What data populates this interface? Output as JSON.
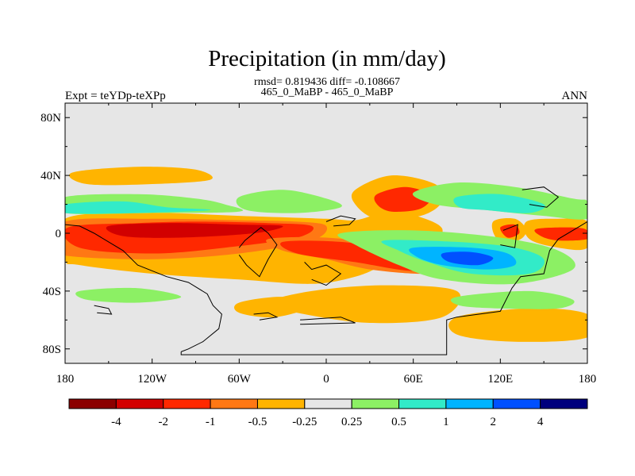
{
  "chart_data": {
    "type": "heatmap",
    "title": "Precipitation (in mm/day)",
    "stats": "rmsd= 0.819436 diff= -0.108667",
    "case_label": "465_0_MaBP - 465_0_MaBP",
    "left_label": "Expt = teYDp-teXPp",
    "right_label": "ANN",
    "x_ticks": [
      "180",
      "120W",
      "60W",
      "0",
      "60E",
      "120E",
      "180"
    ],
    "x_values": [
      -180,
      -120,
      -60,
      0,
      60,
      120,
      180
    ],
    "y_ticks": [
      "80N",
      "40N",
      "0",
      "40S",
      "80S"
    ],
    "y_values": [
      80,
      40,
      0,
      -40,
      -80
    ],
    "xlim": [
      -180,
      180
    ],
    "ylim": [
      -90,
      90
    ],
    "colorbar": {
      "labels": [
        "-4",
        "-2",
        "-1",
        "-0.5",
        "-0.25",
        "0.25",
        "0.5",
        "1",
        "2",
        "4"
      ],
      "colors": [
        "#8b0000",
        "#d20000",
        "#ff2800",
        "#ff7814",
        "#ffb400",
        "#e6e6e6",
        "#8cf064",
        "#32ebc8",
        "#00b4ff",
        "#0050ff",
        "#00007d"
      ]
    },
    "background_color": "#e6e6e6",
    "features": [
      {
        "level": "-0.25",
        "color": "#ffb400",
        "pts": [
          [
            -180,
            10
          ],
          [
            -120,
            14
          ],
          [
            -60,
            12
          ],
          [
            0,
            10
          ],
          [
            20,
            9
          ],
          [
            40,
            14
          ],
          [
            62,
            12
          ],
          [
            80,
            3
          ],
          [
            70,
            -10
          ],
          [
            40,
            -22
          ],
          [
            20,
            -30
          ],
          [
            -10,
            -35
          ],
          [
            -60,
            -32
          ],
          [
            -120,
            -28
          ],
          [
            -170,
            -22
          ],
          [
            -180,
            -18
          ]
        ]
      },
      {
        "level": "-0.5",
        "color": "#ff7814",
        "pts": [
          [
            -180,
            8
          ],
          [
            -120,
            10
          ],
          [
            -60,
            9
          ],
          [
            -20,
            8
          ],
          [
            0,
            5
          ],
          [
            -10,
            -5
          ],
          [
            -60,
            -14
          ],
          [
            -120,
            -18
          ],
          [
            -175,
            -16
          ],
          [
            -180,
            -12
          ]
        ]
      },
      {
        "level": "-1",
        "color": "#ff2800",
        "pts": [
          [
            -178,
            4
          ],
          [
            -130,
            7
          ],
          [
            -90,
            8
          ],
          [
            -40,
            7
          ],
          [
            -10,
            5
          ],
          [
            -20,
            -3
          ],
          [
            -70,
            -10
          ],
          [
            -120,
            -14
          ],
          [
            -170,
            -10
          ]
        ]
      },
      {
        "level": "-2",
        "color": "#d20000",
        "pts": [
          [
            -150,
            5
          ],
          [
            -110,
            7
          ],
          [
            -60,
            6
          ],
          [
            -30,
            5
          ],
          [
            -50,
            0
          ],
          [
            -100,
            -3
          ],
          [
            -140,
            -2
          ]
        ]
      },
      {
        "level": "-0.5",
        "color": "#ff7814",
        "pts": [
          [
            -40,
            -4
          ],
          [
            0,
            -3
          ],
          [
            40,
            -8
          ],
          [
            80,
            -15
          ],
          [
            90,
            -22
          ],
          [
            70,
            -28
          ],
          [
            30,
            -25
          ],
          [
            0,
            -18
          ],
          [
            -30,
            -12
          ]
        ]
      },
      {
        "level": "-1",
        "color": "#ff2800",
        "pts": [
          [
            -30,
            -6
          ],
          [
            10,
            -6
          ],
          [
            50,
            -12
          ],
          [
            80,
            -20
          ],
          [
            60,
            -26
          ],
          [
            20,
            -20
          ],
          [
            -20,
            -14
          ]
        ]
      },
      {
        "level": "-0.25",
        "color": "#ffb400",
        "pts": [
          [
            20,
            30
          ],
          [
            45,
            40
          ],
          [
            75,
            34
          ],
          [
            80,
            22
          ],
          [
            65,
            12
          ],
          [
            35,
            10
          ],
          [
            20,
            20
          ]
        ]
      },
      {
        "level": "-1",
        "color": "#ff2800",
        "pts": [
          [
            35,
            27
          ],
          [
            55,
            32
          ],
          [
            72,
            26
          ],
          [
            65,
            17
          ],
          [
            45,
            15
          ],
          [
            35,
            20
          ]
        ]
      },
      {
        "level": "-0.25",
        "color": "#ffb400",
        "pts": [
          [
            -175,
            42
          ],
          [
            -130,
            46
          ],
          [
            -90,
            44
          ],
          [
            -80,
            37
          ],
          [
            -120,
            34
          ],
          [
            -165,
            34
          ]
        ]
      },
      {
        "level": "-0.25",
        "color": "#ffb400",
        "pts": [
          [
            115,
            8
          ],
          [
            130,
            10
          ],
          [
            138,
            2
          ],
          [
            132,
            -5
          ],
          [
            118,
            -4
          ]
        ]
      },
      {
        "level": "-1",
        "color": "#ff2800",
        "pts": [
          [
            120,
            4
          ],
          [
            130,
            6
          ],
          [
            133,
            0
          ],
          [
            125,
            -3
          ]
        ]
      },
      {
        "level": "-0.25",
        "color": "#ffb400",
        "pts": [
          [
            138,
            8
          ],
          [
            160,
            10
          ],
          [
            180,
            8
          ],
          [
            180,
            -10
          ],
          [
            160,
            -10
          ],
          [
            140,
            -4
          ]
        ]
      },
      {
        "level": "-1",
        "color": "#ff2800",
        "pts": [
          [
            145,
            3
          ],
          [
            170,
            4
          ],
          [
            180,
            2
          ],
          [
            180,
            -4
          ],
          [
            160,
            -5
          ],
          [
            148,
            -2
          ]
        ]
      },
      {
        "level": "-0.25",
        "color": "#ffb400",
        "pts": [
          [
            -10,
            -40
          ],
          [
            40,
            -36
          ],
          [
            90,
            -40
          ],
          [
            80,
            -58
          ],
          [
            30,
            -62
          ],
          [
            -20,
            -55
          ],
          [
            -40,
            -48
          ]
        ]
      },
      {
        "level": "-0.25",
        "color": "#ffb400",
        "pts": [
          [
            90,
            -58
          ],
          [
            140,
            -52
          ],
          [
            180,
            -56
          ],
          [
            180,
            -72
          ],
          [
            130,
            -75
          ],
          [
            90,
            -70
          ]
        ]
      },
      {
        "level": "-0.25",
        "color": "#ffb400",
        "pts": [
          [
            -60,
            -48
          ],
          [
            -30,
            -44
          ],
          [
            -10,
            -50
          ],
          [
            -35,
            -58
          ],
          [
            -60,
            -55
          ]
        ]
      },
      {
        "level": "0.25",
        "color": "#8cf064",
        "pts": [
          [
            -180,
            25
          ],
          [
            -130,
            27
          ],
          [
            -90,
            24
          ],
          [
            -70,
            20
          ],
          [
            -60,
            15
          ],
          [
            -120,
            14
          ],
          [
            -180,
            14
          ]
        ]
      },
      {
        "level": "0.5",
        "color": "#32ebc8",
        "pts": [
          [
            -180,
            20
          ],
          [
            -140,
            22
          ],
          [
            -110,
            18
          ],
          [
            -80,
            16
          ],
          [
            -130,
            14
          ],
          [
            -180,
            14
          ]
        ]
      },
      {
        "level": "0.25",
        "color": "#8cf064",
        "pts": [
          [
            -60,
            25
          ],
          [
            -30,
            30
          ],
          [
            0,
            24
          ],
          [
            10,
            18
          ],
          [
            -20,
            14
          ],
          [
            -55,
            16
          ]
        ]
      },
      {
        "level": "0.25",
        "color": "#8cf064",
        "pts": [
          [
            10,
            0
          ],
          [
            60,
            2
          ],
          [
            120,
            -3
          ],
          [
            160,
            -12
          ],
          [
            170,
            -25
          ],
          [
            130,
            -35
          ],
          [
            80,
            -32
          ],
          [
            50,
            -22
          ],
          [
            20,
            -8
          ]
        ]
      },
      {
        "level": "0.5",
        "color": "#32ebc8",
        "pts": [
          [
            40,
            -5
          ],
          [
            90,
            -6
          ],
          [
            130,
            -10
          ],
          [
            150,
            -18
          ],
          [
            140,
            -28
          ],
          [
            100,
            -28
          ],
          [
            70,
            -20
          ],
          [
            50,
            -12
          ]
        ]
      },
      {
        "level": "1",
        "color": "#00b4ff",
        "pts": [
          [
            60,
            -10
          ],
          [
            100,
            -10
          ],
          [
            125,
            -14
          ],
          [
            130,
            -22
          ],
          [
            110,
            -25
          ],
          [
            80,
            -22
          ],
          [
            62,
            -16
          ]
        ]
      },
      {
        "level": "2",
        "color": "#0050ff",
        "pts": [
          [
            80,
            -14
          ],
          [
            100,
            -13
          ],
          [
            115,
            -17
          ],
          [
            105,
            -22
          ],
          [
            85,
            -20
          ]
        ]
      },
      {
        "level": "0.25",
        "color": "#8cf064",
        "pts": [
          [
            60,
            28
          ],
          [
            90,
            35
          ],
          [
            130,
            32
          ],
          [
            170,
            24
          ],
          [
            180,
            22
          ],
          [
            180,
            10
          ],
          [
            150,
            12
          ],
          [
            110,
            16
          ],
          [
            75,
            20
          ]
        ]
      },
      {
        "level": "0.5",
        "color": "#32ebc8",
        "pts": [
          [
            90,
            25
          ],
          [
            120,
            27
          ],
          [
            150,
            20
          ],
          [
            140,
            14
          ],
          [
            110,
            16
          ],
          [
            92,
            18
          ]
        ]
      },
      {
        "level": "0.25",
        "color": "#8cf064",
        "pts": [
          [
            -170,
            -40
          ],
          [
            -130,
            -38
          ],
          [
            -100,
            -44
          ],
          [
            -130,
            -48
          ],
          [
            -165,
            -46
          ]
        ]
      },
      {
        "level": "0.25",
        "color": "#8cf064",
        "pts": [
          [
            90,
            -44
          ],
          [
            140,
            -40
          ],
          [
            170,
            -46
          ],
          [
            160,
            -52
          ],
          [
            120,
            -52
          ],
          [
            92,
            -50
          ]
        ]
      }
    ],
    "coastlines": [
      [
        [
          -180,
          6
        ],
        [
          -170,
          5
        ],
        [
          -160,
          0
        ],
        [
          -150,
          -6
        ],
        [
          -140,
          -12
        ],
        [
          -130,
          -22
        ],
        [
          -110,
          -30
        ],
        [
          -95,
          -34
        ],
        [
          -82,
          -42
        ],
        [
          -78,
          -50
        ],
        [
          -72,
          -56
        ],
        [
          -74,
          -66
        ],
        [
          -85,
          -75
        ],
        [
          -95,
          -80
        ],
        [
          -100,
          -82
        ]
      ],
      [
        [
          -100,
          -82
        ],
        [
          -100,
          -84
        ],
        [
          83,
          -84
        ],
        [
          83,
          -60
        ],
        [
          90,
          -58
        ],
        [
          120,
          -54
        ],
        [
          128,
          -38
        ],
        [
          134,
          -30
        ],
        [
          150,
          -28
        ],
        [
          154,
          -12
        ],
        [
          160,
          -4
        ],
        [
          175,
          5
        ],
        [
          180,
          8
        ]
      ],
      [
        [
          -60,
          -10
        ],
        [
          -56,
          -5
        ],
        [
          -45,
          4
        ],
        [
          -40,
          0
        ],
        [
          -34,
          -8
        ],
        [
          -40,
          -18
        ],
        [
          -46,
          -30
        ],
        [
          -55,
          -22
        ],
        [
          -60,
          -15
        ]
      ],
      [
        [
          -15,
          -20
        ],
        [
          -10,
          -25
        ],
        [
          0,
          -22
        ],
        [
          10,
          -28
        ],
        [
          0,
          -36
        ],
        [
          -10,
          -32
        ]
      ],
      [
        [
          0,
          8
        ],
        [
          10,
          12
        ],
        [
          20,
          10
        ],
        [
          16,
          6
        ],
        [
          5,
          5
        ]
      ],
      [
        [
          -50,
          -56
        ],
        [
          -40,
          -55
        ],
        [
          -34,
          -58
        ],
        [
          -46,
          -60
        ]
      ],
      [
        [
          -18,
          -60
        ],
        [
          10,
          -58
        ],
        [
          20,
          -62
        ],
        [
          -18,
          -63
        ]
      ],
      [
        [
          122,
          2
        ],
        [
          132,
          6
        ],
        [
          130,
          -10
        ],
        [
          120,
          -8
        ]
      ],
      [
        [
          135,
          30
        ],
        [
          150,
          32
        ],
        [
          160,
          25
        ],
        [
          152,
          18
        ],
        [
          140,
          20
        ]
      ],
      [
        [
          -160,
          -50
        ],
        [
          -150,
          -52
        ],
        [
          -148,
          -56
        ],
        [
          -158,
          -55
        ]
      ]
    ]
  }
}
